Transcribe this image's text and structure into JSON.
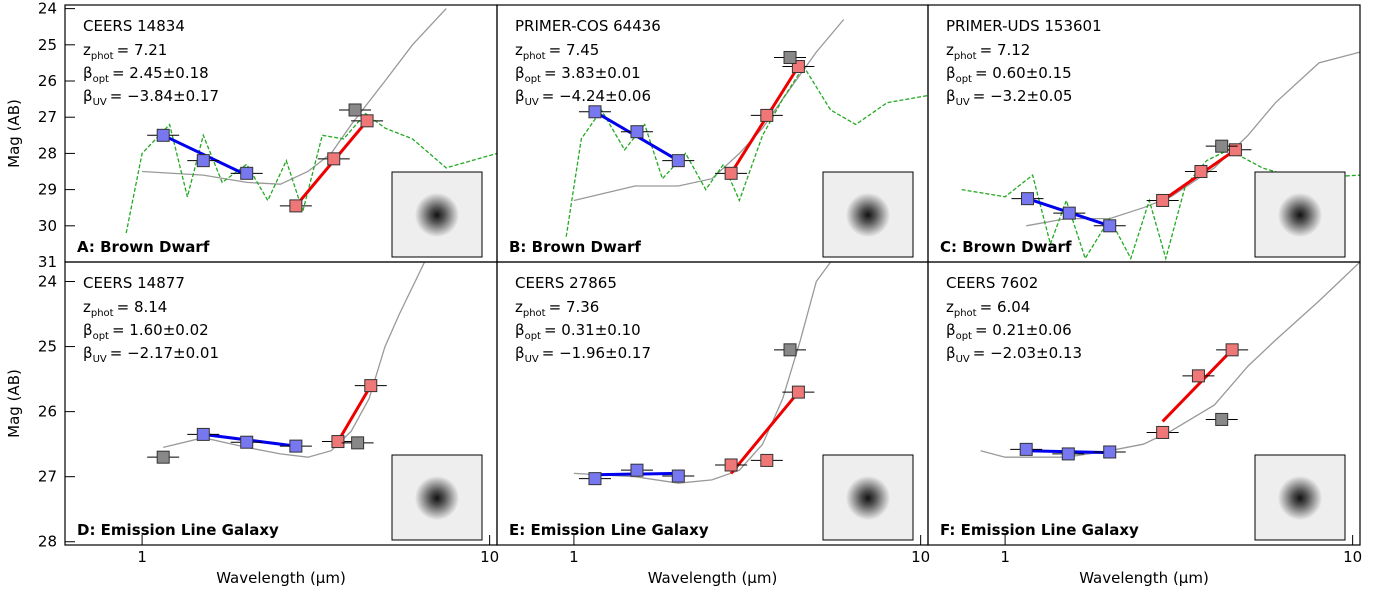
{
  "chart_data": [
    {
      "type": "scatter",
      "title": "CEERS 14834",
      "annotations": [
        {
          "symbol": "z",
          "subscript": "phot",
          "text": "= 7.21"
        },
        {
          "symbol": "β",
          "subscript": "opt",
          "text": "= 2.45±0.18"
        },
        {
          "symbol": "β",
          "subscript": "UV",
          "text": "= −3.84±0.17"
        }
      ],
      "label": "A:  Brown Dwarf",
      "ylabel": "Mag (AB)",
      "log_x": true,
      "xlim": [
        0.6,
        10.5
      ],
      "ylim": [
        31,
        23.9
      ],
      "yticks": [
        24,
        25,
        26,
        27,
        28,
        29,
        30,
        31
      ],
      "series": [
        {
          "marker": "line",
          "color": "#999999",
          "x": [
            1.0,
            1.5,
            2.0,
            2.5,
            3.0,
            3.5,
            4.0,
            5.0,
            6.0,
            7.5
          ],
          "values": [
            28.5,
            28.6,
            28.8,
            28.85,
            28.5,
            28.0,
            27.2,
            26.0,
            25.0,
            24.0
          ]
        },
        {
          "marker": "dashed",
          "color": "#22aa22",
          "x": [
            0.9,
            1.0,
            1.2,
            1.35,
            1.5,
            1.7,
            2.0,
            2.3,
            2.6,
            2.9,
            3.3,
            3.8,
            4.4,
            5.0,
            6.0,
            7.5,
            10.5
          ],
          "values": [
            30.2,
            28.0,
            27.2,
            29.2,
            27.5,
            28.8,
            28.3,
            29.3,
            28.2,
            29.6,
            27.5,
            27.6,
            26.9,
            27.3,
            27.6,
            28.4,
            28.0
          ]
        },
        {
          "marker": "fit",
          "color": "#0000ee",
          "x": [
            1.15,
            2.0
          ],
          "values": [
            27.5,
            28.6
          ]
        },
        {
          "marker": "fit",
          "color": "#ee0000",
          "x": [
            2.77,
            4.44
          ],
          "values": [
            29.45,
            27.1
          ]
        },
        {
          "marker": "square",
          "color": "#7777f0",
          "x": [
            1.15,
            1.5,
            2.0
          ],
          "values": [
            27.5,
            28.2,
            28.55
          ]
        },
        {
          "marker": "square",
          "color": "#f07777",
          "x": [
            2.77,
            3.56,
            4.44
          ],
          "values": [
            29.45,
            28.15,
            27.1
          ]
        },
        {
          "marker": "square",
          "color": "#888888",
          "x": [
            4.1
          ],
          "values": [
            26.8
          ]
        }
      ]
    },
    {
      "type": "scatter",
      "title": "PRIMER-COS 64436",
      "annotations": [
        {
          "symbol": "z",
          "subscript": "phot",
          "text": "= 7.45"
        },
        {
          "symbol": "β",
          "subscript": "opt",
          "text": "= 3.83±0.01"
        },
        {
          "symbol": "β",
          "subscript": "UV",
          "text": "= −4.24±0.06"
        }
      ],
      "label": "B:  Brown Dwarf",
      "log_x": true,
      "xlim": [
        0.6,
        10.5
      ],
      "ylim": [
        31,
        23.9
      ],
      "series": [
        {
          "marker": "line",
          "color": "#999999",
          "x": [
            1.0,
            1.5,
            2.0,
            2.5,
            3.0,
            3.5,
            4.0,
            5.0,
            6.0
          ],
          "values": [
            29.3,
            28.9,
            28.9,
            28.7,
            28.0,
            27.3,
            26.5,
            25.2,
            24.3
          ]
        },
        {
          "marker": "dashed",
          "color": "#22aa22",
          "x": [
            0.95,
            1.05,
            1.2,
            1.4,
            1.6,
            1.8,
            2.1,
            2.4,
            2.7,
            3.0,
            3.5,
            4.0,
            4.6,
            5.5,
            6.5,
            8.0,
            10.5
          ],
          "values": [
            30.3,
            27.6,
            26.8,
            27.9,
            27.2,
            28.7,
            28.0,
            29.0,
            28.3,
            29.3,
            27.5,
            26.5,
            25.6,
            26.8,
            27.2,
            26.6,
            26.4
          ]
        },
        {
          "marker": "fit",
          "color": "#0000ee",
          "x": [
            1.15,
            2.0
          ],
          "values": [
            26.85,
            28.2
          ]
        },
        {
          "marker": "fit",
          "color": "#ee0000",
          "x": [
            2.84,
            4.44
          ],
          "values": [
            28.55,
            25.6
          ]
        },
        {
          "marker": "square",
          "color": "#7777f0",
          "x": [
            1.15,
            1.52,
            2.0
          ],
          "values": [
            26.85,
            27.4,
            28.2
          ]
        },
        {
          "marker": "square",
          "color": "#f07777",
          "x": [
            2.84,
            3.6,
            4.44
          ],
          "values": [
            28.55,
            26.95,
            25.6
          ]
        },
        {
          "marker": "square",
          "color": "#888888",
          "x": [
            4.2
          ],
          "values": [
            25.35
          ]
        }
      ]
    },
    {
      "type": "scatter",
      "title": "PRIMER-UDS 153601",
      "annotations": [
        {
          "symbol": "z",
          "subscript": "phot",
          "text": "= 7.12"
        },
        {
          "symbol": "β",
          "subscript": "opt",
          "text": "= 0.60±0.15"
        },
        {
          "symbol": "β",
          "subscript": "UV",
          "text": "= −3.2±0.05"
        }
      ],
      "label": "C:  Brown Dwarf",
      "log_x": true,
      "xlim": [
        0.6,
        10.5
      ],
      "ylim": [
        31,
        23.9
      ],
      "series": [
        {
          "marker": "line",
          "color": "#999999",
          "x": [
            1.15,
            1.5,
            2.0,
            2.5,
            3.0,
            4.0,
            5.0,
            6.0,
            8.0,
            10.5
          ],
          "values": [
            30.0,
            29.8,
            29.8,
            29.5,
            29.2,
            28.4,
            27.5,
            26.6,
            25.5,
            25.2
          ]
        },
        {
          "marker": "dashed",
          "color": "#22aa22",
          "x": [
            0.75,
            1.0,
            1.2,
            1.35,
            1.5,
            1.7,
            2.0,
            2.3,
            2.6,
            2.9,
            3.3,
            3.8,
            4.4,
            5.5,
            7.0,
            10.5
          ],
          "values": [
            29.0,
            29.2,
            28.6,
            30.5,
            29.3,
            30.9,
            29.8,
            30.9,
            29.3,
            30.9,
            28.9,
            28.2,
            27.9,
            28.4,
            28.7,
            28.6
          ]
        },
        {
          "marker": "fit",
          "color": "#0000ee",
          "x": [
            1.16,
            2.0
          ],
          "values": [
            29.25,
            30.0
          ]
        },
        {
          "marker": "fit",
          "color": "#ee0000",
          "x": [
            2.84,
            4.6
          ],
          "values": [
            29.3,
            27.9
          ]
        },
        {
          "marker": "square",
          "color": "#7777f0",
          "x": [
            1.16,
            1.53,
            2.0
          ],
          "values": [
            29.25,
            29.65,
            30.0
          ]
        },
        {
          "marker": "square",
          "color": "#f07777",
          "x": [
            2.84,
            3.66,
            4.6
          ],
          "values": [
            29.3,
            28.5,
            27.9
          ]
        },
        {
          "marker": "square",
          "color": "#888888",
          "x": [
            4.2
          ],
          "values": [
            27.8
          ]
        }
      ]
    },
    {
      "type": "scatter",
      "title": "CEERS 14877",
      "annotations": [
        {
          "symbol": "z",
          "subscript": "phot",
          "text": "= 8.14"
        },
        {
          "symbol": "β",
          "subscript": "opt",
          "text": "= 1.60±0.02"
        },
        {
          "symbol": "β",
          "subscript": "UV",
          "text": "= −2.17±0.01"
        }
      ],
      "label": "D:  Emission Line Galaxy",
      "ylabel": "Mag (AB)",
      "xlabel": "Wavelength (μm)",
      "log_x": true,
      "xlim": [
        0.6,
        10.5
      ],
      "ylim": [
        28.05,
        23.7
      ],
      "yticks": [
        24,
        25,
        26,
        27,
        28
      ],
      "xticks": [
        1,
        10
      ],
      "series": [
        {
          "marker": "line",
          "color": "#999999",
          "x": [
            1.15,
            1.5,
            2.0,
            2.5,
            3.0,
            3.5,
            4.0,
            4.5,
            5.0,
            5.5,
            6.5
          ],
          "values": [
            26.55,
            26.4,
            26.55,
            26.65,
            26.7,
            26.6,
            26.3,
            25.8,
            25.0,
            24.5,
            23.7
          ]
        },
        {
          "marker": "fit",
          "color": "#0000ee",
          "x": [
            1.5,
            2.77
          ],
          "values": [
            26.35,
            26.53
          ]
        },
        {
          "marker": "fit",
          "color": "#ee0000",
          "x": [
            3.66,
            4.55
          ],
          "values": [
            26.46,
            25.6
          ]
        },
        {
          "marker": "square",
          "color": "#7777f0",
          "x": [
            1.5,
            2.0,
            2.77
          ],
          "values": [
            26.35,
            26.47,
            26.53
          ]
        },
        {
          "marker": "square",
          "color": "#f07777",
          "x": [
            3.66,
            4.55
          ],
          "values": [
            26.46,
            25.6
          ]
        },
        {
          "marker": "square",
          "color": "#888888",
          "x": [
            1.15,
            4.17
          ],
          "values": [
            26.7,
            26.48
          ]
        }
      ]
    },
    {
      "type": "scatter",
      "title": "CEERS 27865",
      "annotations": [
        {
          "symbol": "z",
          "subscript": "phot",
          "text": "= 7.36"
        },
        {
          "symbol": "β",
          "subscript": "opt",
          "text": "= 0.31±0.10"
        },
        {
          "symbol": "β",
          "subscript": "UV",
          "text": "= −1.96±0.17"
        }
      ],
      "label": "E:  Emission Line Galaxy",
      "xlabel": "Wavelength (μm)",
      "log_x": true,
      "xlim": [
        0.6,
        10.5
      ],
      "ylim": [
        28.05,
        23.7
      ],
      "xticks": [
        1,
        10
      ],
      "series": [
        {
          "marker": "line",
          "color": "#999999",
          "x": [
            1.0,
            1.5,
            2.0,
            2.5,
            3.0,
            3.5,
            4.0,
            4.5,
            5.0,
            5.5
          ],
          "values": [
            26.95,
            27.0,
            27.1,
            27.05,
            26.9,
            26.5,
            25.8,
            24.9,
            24.0,
            23.7
          ]
        },
        {
          "marker": "fit",
          "color": "#0000ee",
          "x": [
            1.15,
            2.0
          ],
          "values": [
            26.97,
            26.95
          ]
        },
        {
          "marker": "fit",
          "color": "#ee0000",
          "x": [
            2.84,
            4.44
          ],
          "values": [
            26.95,
            25.7
          ]
        },
        {
          "marker": "square",
          "color": "#7777f0",
          "x": [
            1.15,
            1.52,
            2.0
          ],
          "values": [
            27.03,
            26.9,
            26.99
          ]
        },
        {
          "marker": "square",
          "color": "#f07777",
          "x": [
            2.84,
            3.6,
            4.44
          ],
          "values": [
            26.82,
            26.75,
            25.7
          ]
        },
        {
          "marker": "square",
          "color": "#888888",
          "x": [
            4.2
          ],
          "values": [
            25.05
          ]
        }
      ]
    },
    {
      "type": "scatter",
      "title": "CEERS 7602",
      "annotations": [
        {
          "symbol": "z",
          "subscript": "phot",
          "text": "= 6.04"
        },
        {
          "symbol": "β",
          "subscript": "opt",
          "text": "= 0.21±0.06"
        },
        {
          "symbol": "β",
          "subscript": "UV",
          "text": "= −2.03±0.13"
        }
      ],
      "label": "F:  Emission Line Galaxy",
      "xlabel": "Wavelength (μm)",
      "log_x": true,
      "xlim": [
        0.6,
        10.5
      ],
      "ylim": [
        28.05,
        23.7
      ],
      "xticks": [
        1,
        10
      ],
      "series": [
        {
          "marker": "line",
          "color": "#999999",
          "x": [
            0.85,
            1.0,
            1.5,
            2.0,
            2.5,
            3.0,
            4.0,
            5.0,
            6.0,
            8.0,
            10.5
          ],
          "values": [
            26.6,
            26.7,
            26.7,
            26.6,
            26.5,
            26.3,
            25.9,
            25.3,
            24.9,
            24.3,
            23.7
          ]
        },
        {
          "marker": "fit",
          "color": "#0000ee",
          "x": [
            1.15,
            2.0
          ],
          "values": [
            26.6,
            26.63
          ]
        },
        {
          "marker": "fit",
          "color": "#ee0000",
          "x": [
            2.84,
            4.5
          ],
          "values": [
            26.15,
            25.05
          ]
        },
        {
          "marker": "square",
          "color": "#7777f0",
          "x": [
            1.15,
            1.52,
            2.0
          ],
          "values": [
            26.58,
            26.65,
            26.62
          ]
        },
        {
          "marker": "square",
          "color": "#f07777",
          "x": [
            2.84,
            3.6,
            4.5
          ],
          "values": [
            26.32,
            25.45,
            25.05
          ]
        },
        {
          "marker": "square",
          "color": "#888888",
          "x": [
            4.2
          ],
          "values": [
            26.12
          ]
        }
      ]
    }
  ]
}
